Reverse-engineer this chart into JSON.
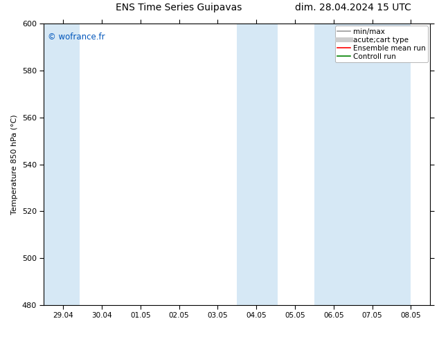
{
  "title_left": "ENS Time Series Guipavas",
  "title_right": "dim. 28.04.2024 15 UTC",
  "ylabel": "Temperature 850 hPa (°C)",
  "watermark": "© wofrance.fr",
  "watermark_color": "#0055BB",
  "ylim": [
    480,
    600
  ],
  "yticks": [
    480,
    500,
    520,
    540,
    560,
    580,
    600
  ],
  "xtick_labels": [
    "29.04",
    "30.04",
    "01.05",
    "02.05",
    "03.05",
    "04.05",
    "05.05",
    "06.05",
    "07.05",
    "08.05"
  ],
  "shaded_bands": [
    {
      "xstart": 0,
      "xend": 0.42,
      "color": "#D6E8F5"
    },
    {
      "xstart": 5.0,
      "xend": 5.55,
      "color": "#D6E8F5"
    },
    {
      "xstart": 7.0,
      "xend": 9.0,
      "color": "#D6E8F5"
    }
  ],
  "legend_entries": [
    {
      "label": "min/max",
      "color": "#999999",
      "lw": 1.2,
      "linestyle": "-"
    },
    {
      "label": "acute;cart type",
      "color": "#CCCCCC",
      "lw": 5,
      "linestyle": "-"
    },
    {
      "label": "Ensemble mean run",
      "color": "red",
      "lw": 1.2,
      "linestyle": "-"
    },
    {
      "label": "Controll run",
      "color": "green",
      "lw": 1.2,
      "linestyle": "-"
    }
  ],
  "bg_color": "#FFFFFF",
  "plot_bg_color": "#FFFFFF",
  "border_color": "#000000",
  "title_fontsize": 10,
  "ylabel_fontsize": 8,
  "xtick_fontsize": 7.5,
  "ytick_fontsize": 8,
  "legend_fontsize": 7.5
}
